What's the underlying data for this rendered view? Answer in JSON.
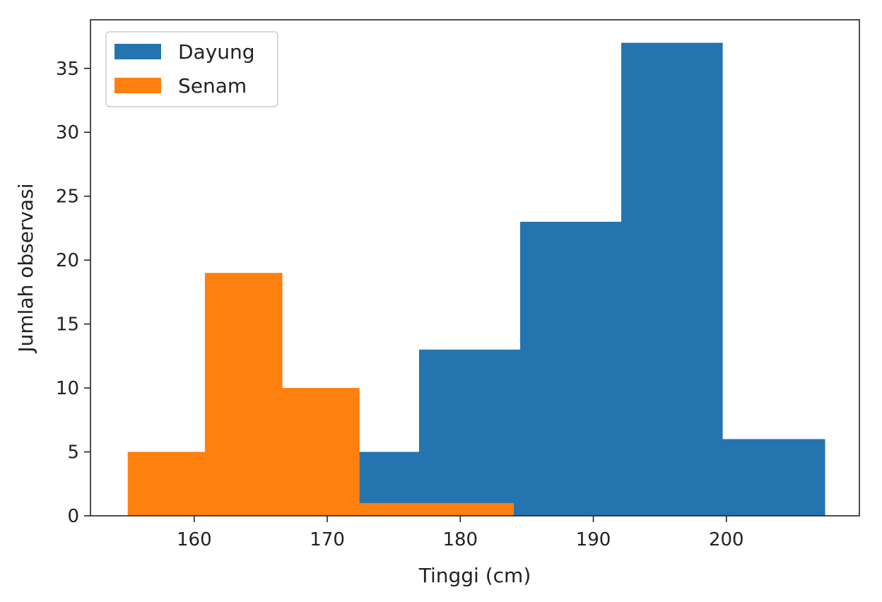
{
  "chart_data": {
    "type": "bar",
    "subtype": "histogram",
    "title": "",
    "xlabel": "Tinggi (cm)",
    "ylabel": "Jumlah observasi",
    "xlim": [
      152.2,
      210.0
    ],
    "ylim": [
      0,
      38.8
    ],
    "xticks": [
      160,
      170,
      180,
      190,
      200
    ],
    "yticks": [
      0,
      5,
      10,
      15,
      20,
      25,
      30,
      35
    ],
    "grid": false,
    "legend_position": "top-left",
    "series": [
      {
        "name": "Dayung",
        "color": "#2474b0",
        "bin_edges": [
          169.2,
          176.9,
          184.5,
          192.1,
          199.7,
          207.4
        ],
        "values": [
          5,
          13,
          23,
          37,
          6
        ]
      },
      {
        "name": "Senam",
        "color": "#ff800e",
        "bin_edges": [
          155.0,
          160.8,
          166.6,
          172.4,
          178.2,
          184.0
        ],
        "values": [
          5,
          19,
          10,
          1,
          1
        ]
      }
    ]
  }
}
